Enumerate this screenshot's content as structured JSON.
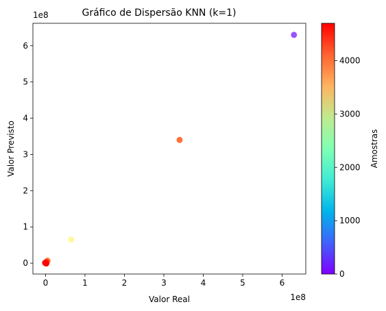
{
  "chart_data": {
    "type": "scatter",
    "title": "Gráfico de Dispersão KNN (k=1)",
    "xlabel": "Valor Real",
    "ylabel": "Valor Previsto",
    "x_offset_label": "1e8",
    "y_offset_label": "1e8",
    "xlim": [
      -0.32,
      6.6
    ],
    "ylim": [
      -0.3,
      6.62
    ],
    "x_ticks": [
      0,
      1,
      2,
      3,
      4,
      5,
      6
    ],
    "y_ticks": [
      0,
      1,
      2,
      3,
      4,
      5,
      6
    ],
    "grid": false,
    "colorbar": {
      "label": "Amostras",
      "range": [
        0,
        4700
      ],
      "ticks": [
        0,
        1000,
        2000,
        3000,
        4000
      ],
      "colormap": "rainbow"
    },
    "points": [
      {
        "x": 6.3,
        "y": 6.3,
        "c": 500
      },
      {
        "x": 3.4,
        "y": 3.4,
        "c": 4000
      },
      {
        "x": 0.65,
        "y": 0.65,
        "c": 2700
      },
      {
        "x": 0.05,
        "y": 0.07,
        "c": 3800
      },
      {
        "x": 0.03,
        "y": 0.04,
        "c": 4300
      },
      {
        "x": 0.01,
        "y": 0.02,
        "c": 4500
      },
      {
        "x": 0.0,
        "y": 0.0,
        "c": 4650
      },
      {
        "x": -0.01,
        "y": 0.01,
        "c": 4600
      },
      {
        "x": 0.02,
        "y": -0.01,
        "c": 4550
      },
      {
        "x": 0.01,
        "y": 0.0,
        "c": 4680
      }
    ]
  }
}
